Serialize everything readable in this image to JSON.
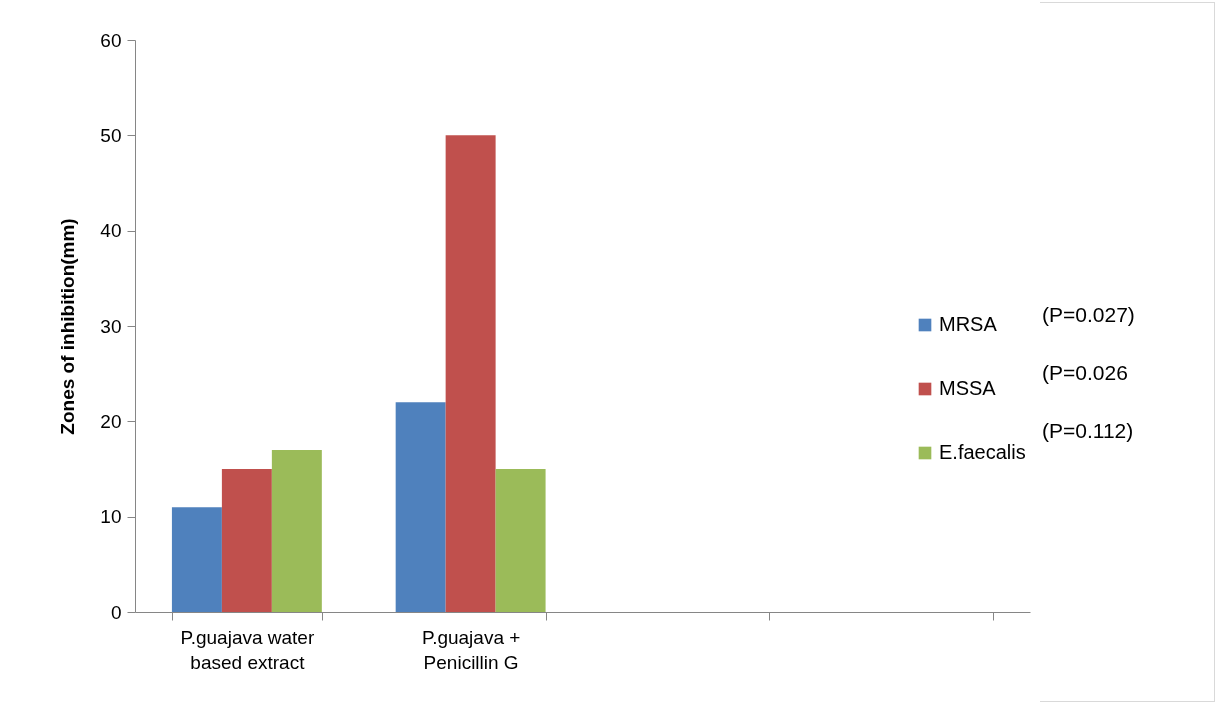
{
  "chart_data": {
    "type": "bar",
    "ylabel": "Zones of inhibition(mm)",
    "categories": [
      "P.guajava water based extract",
      "P.guajava + Penicillin G",
      null,
      null
    ],
    "series": [
      {
        "name": "MRSA",
        "color": "#4f81bd",
        "values": [
          11,
          22,
          null,
          null
        ]
      },
      {
        "name": "MSSA",
        "color": "#c0504d",
        "values": [
          15,
          50,
          null,
          null
        ]
      },
      {
        "name": "E.faecalis",
        "color": "#9bbb59",
        "values": [
          17,
          15,
          null,
          null
        ]
      }
    ],
    "ylim": [
      0,
      60
    ],
    "yticks": [
      0,
      10,
      20,
      30,
      40,
      50,
      60
    ],
    "grid": false,
    "legend": "right",
    "annotations": [
      "(P=0.027)",
      "(P=0.026",
      "(P=0.112)"
    ]
  }
}
